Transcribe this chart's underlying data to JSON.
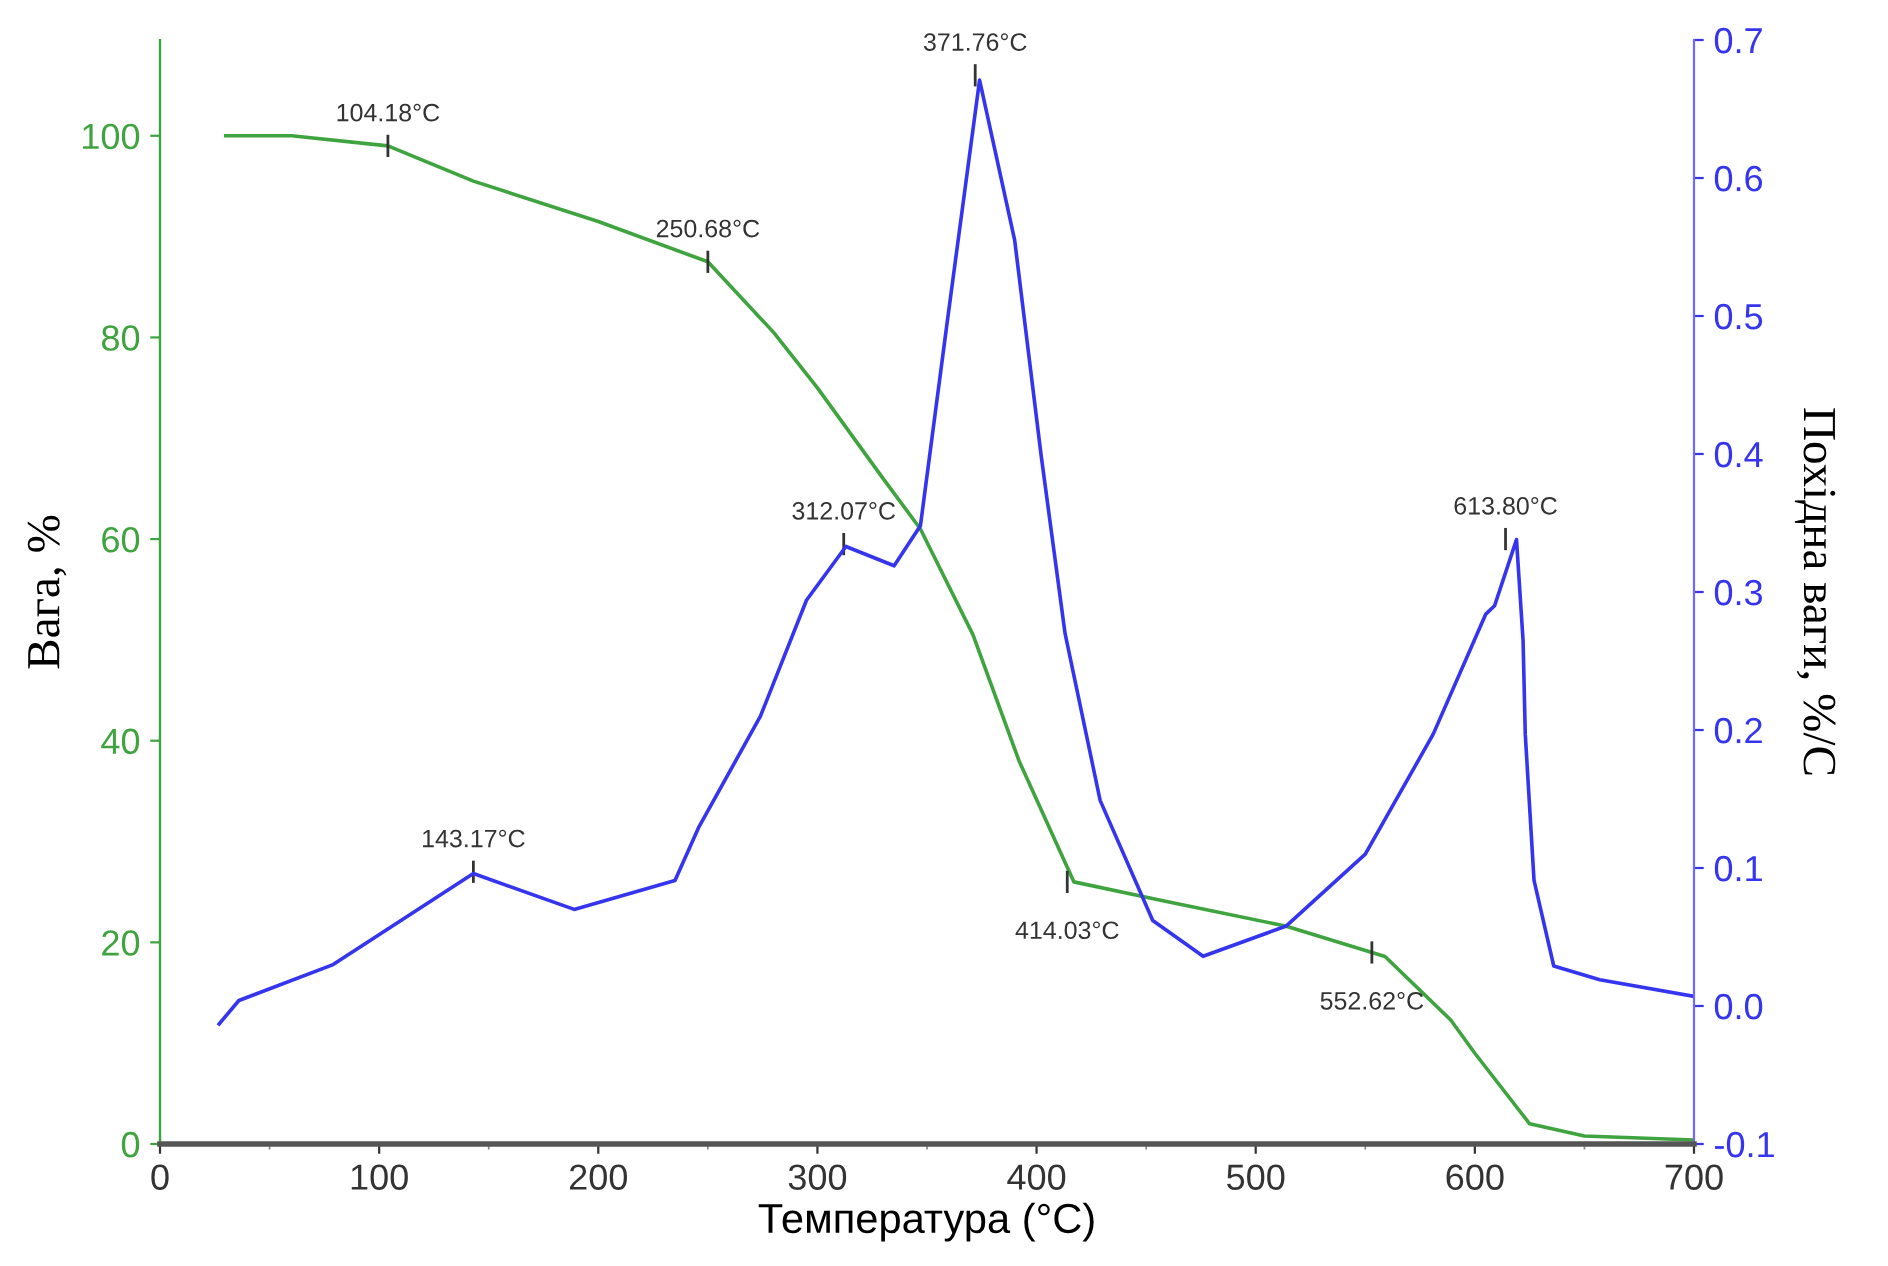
{
  "chart_data": {
    "type": "line",
    "xlabel": "Температура (°C)",
    "ylabel": "Вага, %",
    "y2label": "Похідна ваги, %/С",
    "xlim": [
      0,
      700
    ],
    "xticks": [
      0,
      100,
      200,
      300,
      400,
      500,
      600,
      700
    ],
    "ylim": [
      0,
      109.5
    ],
    "yticks": [
      0,
      20,
      40,
      60,
      80,
      100
    ],
    "y2lim": [
      -0.1,
      0.7
    ],
    "y2ticks": [
      {
        "value": -0.1,
        "label": "-0.1"
      },
      {
        "value": 0,
        "label": "0.0"
      },
      {
        "value": 0.1,
        "label": "0.1"
      },
      {
        "value": 0.2,
        "label": "0.2"
      },
      {
        "value": 0.3,
        "label": "0.3"
      },
      {
        "value": 0.4,
        "label": "0.4"
      },
      {
        "value": 0.5,
        "label": "0.5"
      },
      {
        "value": 0.6,
        "label": "0.6"
      },
      {
        "value": 0.7,
        "label": "0.7"
      }
    ],
    "grid": false,
    "marker": "none",
    "line_style": "solid",
    "series": [
      {
        "color": "#3fa33f",
        "x": [
          30,
          60,
          104,
          143,
          200,
          250,
          280,
          300,
          330,
          347,
          371,
          392,
          417,
          456,
          514,
          559,
          589,
          600,
          625,
          650,
          700
        ],
        "values": [
          100,
          100,
          99,
          95.5,
          91.5,
          87.5,
          80.5,
          75,
          66,
          61,
          50.5,
          38,
          26,
          24.2,
          21.6,
          18.6,
          12.3,
          9,
          2,
          0.8,
          0.4
        ]
      },
      {
        "color": "#3535f0",
        "axis": "y2",
        "x": [
          27,
          36,
          79,
          143,
          189,
          235,
          246,
          274,
          295,
          313,
          335,
          347,
          359,
          374,
          390,
          402,
          413,
          429,
          453,
          476,
          514,
          550,
          581,
          605,
          609,
          619,
          622,
          623,
          627,
          636,
          657,
          700
        ],
        "values": [
          -0.013,
          0.004,
          0.03,
          0.096,
          0.07,
          0.091,
          0.13,
          0.21,
          0.294,
          0.333,
          0.319,
          0.348,
          0.493,
          0.671,
          0.555,
          0.4,
          0.27,
          0.149,
          0.062,
          0.036,
          0.058,
          0.11,
          0.197,
          0.284,
          0.29,
          0.338,
          0.265,
          0.197,
          0.091,
          0.029,
          0.019,
          0.007
        ]
      }
    ],
    "annotations": [
      {
        "text": "104.18°C",
        "x": 104,
        "y": 99
      },
      {
        "text": "250.68°C",
        "x": 250,
        "y": 87.5
      },
      {
        "text": "143.17°C",
        "x": 143,
        "y": 27
      },
      {
        "text": "312.07°C",
        "x": 312,
        "y": 59.5
      },
      {
        "text": "371.76°C",
        "x": 372,
        "y": 106
      },
      {
        "text": "414.03°C",
        "x": 414,
        "y": 26
      },
      {
        "text": "552.62°C",
        "x": 553,
        "y": 19
      },
      {
        "text": "613.80°C",
        "x": 614,
        "y": 60
      }
    ]
  }
}
